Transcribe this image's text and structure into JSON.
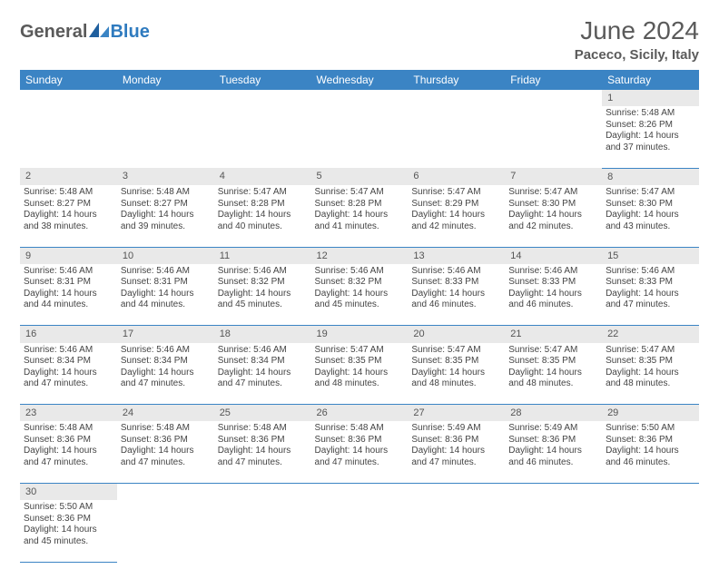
{
  "header": {
    "logo_part1": "General",
    "logo_part2": "Blue",
    "title": "June 2024",
    "subtitle": "Paceco, Sicily, Italy"
  },
  "colors": {
    "header_bg": "#3b84c4",
    "header_text": "#ffffff",
    "daynum_bg": "#e9e9e9",
    "border": "#3b84c4",
    "logo_gray": "#5a5a5a",
    "logo_blue": "#2f7bbf"
  },
  "weekdays": [
    "Sunday",
    "Monday",
    "Tuesday",
    "Wednesday",
    "Thursday",
    "Friday",
    "Saturday"
  ],
  "weeks": [
    [
      null,
      null,
      null,
      null,
      null,
      null,
      {
        "n": "1",
        "sr": "Sunrise: 5:48 AM",
        "ss": "Sunset: 8:26 PM",
        "dl1": "Daylight: 14 hours",
        "dl2": "and 37 minutes."
      }
    ],
    [
      {
        "n": "2",
        "sr": "Sunrise: 5:48 AM",
        "ss": "Sunset: 8:27 PM",
        "dl1": "Daylight: 14 hours",
        "dl2": "and 38 minutes."
      },
      {
        "n": "3",
        "sr": "Sunrise: 5:48 AM",
        "ss": "Sunset: 8:27 PM",
        "dl1": "Daylight: 14 hours",
        "dl2": "and 39 minutes."
      },
      {
        "n": "4",
        "sr": "Sunrise: 5:47 AM",
        "ss": "Sunset: 8:28 PM",
        "dl1": "Daylight: 14 hours",
        "dl2": "and 40 minutes."
      },
      {
        "n": "5",
        "sr": "Sunrise: 5:47 AM",
        "ss": "Sunset: 8:28 PM",
        "dl1": "Daylight: 14 hours",
        "dl2": "and 41 minutes."
      },
      {
        "n": "6",
        "sr": "Sunrise: 5:47 AM",
        "ss": "Sunset: 8:29 PM",
        "dl1": "Daylight: 14 hours",
        "dl2": "and 42 minutes."
      },
      {
        "n": "7",
        "sr": "Sunrise: 5:47 AM",
        "ss": "Sunset: 8:30 PM",
        "dl1": "Daylight: 14 hours",
        "dl2": "and 42 minutes."
      },
      {
        "n": "8",
        "sr": "Sunrise: 5:47 AM",
        "ss": "Sunset: 8:30 PM",
        "dl1": "Daylight: 14 hours",
        "dl2": "and 43 minutes."
      }
    ],
    [
      {
        "n": "9",
        "sr": "Sunrise: 5:46 AM",
        "ss": "Sunset: 8:31 PM",
        "dl1": "Daylight: 14 hours",
        "dl2": "and 44 minutes."
      },
      {
        "n": "10",
        "sr": "Sunrise: 5:46 AM",
        "ss": "Sunset: 8:31 PM",
        "dl1": "Daylight: 14 hours",
        "dl2": "and 44 minutes."
      },
      {
        "n": "11",
        "sr": "Sunrise: 5:46 AM",
        "ss": "Sunset: 8:32 PM",
        "dl1": "Daylight: 14 hours",
        "dl2": "and 45 minutes."
      },
      {
        "n": "12",
        "sr": "Sunrise: 5:46 AM",
        "ss": "Sunset: 8:32 PM",
        "dl1": "Daylight: 14 hours",
        "dl2": "and 45 minutes."
      },
      {
        "n": "13",
        "sr": "Sunrise: 5:46 AM",
        "ss": "Sunset: 8:33 PM",
        "dl1": "Daylight: 14 hours",
        "dl2": "and 46 minutes."
      },
      {
        "n": "14",
        "sr": "Sunrise: 5:46 AM",
        "ss": "Sunset: 8:33 PM",
        "dl1": "Daylight: 14 hours",
        "dl2": "and 46 minutes."
      },
      {
        "n": "15",
        "sr": "Sunrise: 5:46 AM",
        "ss": "Sunset: 8:33 PM",
        "dl1": "Daylight: 14 hours",
        "dl2": "and 47 minutes."
      }
    ],
    [
      {
        "n": "16",
        "sr": "Sunrise: 5:46 AM",
        "ss": "Sunset: 8:34 PM",
        "dl1": "Daylight: 14 hours",
        "dl2": "and 47 minutes."
      },
      {
        "n": "17",
        "sr": "Sunrise: 5:46 AM",
        "ss": "Sunset: 8:34 PM",
        "dl1": "Daylight: 14 hours",
        "dl2": "and 47 minutes."
      },
      {
        "n": "18",
        "sr": "Sunrise: 5:46 AM",
        "ss": "Sunset: 8:34 PM",
        "dl1": "Daylight: 14 hours",
        "dl2": "and 47 minutes."
      },
      {
        "n": "19",
        "sr": "Sunrise: 5:47 AM",
        "ss": "Sunset: 8:35 PM",
        "dl1": "Daylight: 14 hours",
        "dl2": "and 48 minutes."
      },
      {
        "n": "20",
        "sr": "Sunrise: 5:47 AM",
        "ss": "Sunset: 8:35 PM",
        "dl1": "Daylight: 14 hours",
        "dl2": "and 48 minutes."
      },
      {
        "n": "21",
        "sr": "Sunrise: 5:47 AM",
        "ss": "Sunset: 8:35 PM",
        "dl1": "Daylight: 14 hours",
        "dl2": "and 48 minutes."
      },
      {
        "n": "22",
        "sr": "Sunrise: 5:47 AM",
        "ss": "Sunset: 8:35 PM",
        "dl1": "Daylight: 14 hours",
        "dl2": "and 48 minutes."
      }
    ],
    [
      {
        "n": "23",
        "sr": "Sunrise: 5:48 AM",
        "ss": "Sunset: 8:36 PM",
        "dl1": "Daylight: 14 hours",
        "dl2": "and 47 minutes."
      },
      {
        "n": "24",
        "sr": "Sunrise: 5:48 AM",
        "ss": "Sunset: 8:36 PM",
        "dl1": "Daylight: 14 hours",
        "dl2": "and 47 minutes."
      },
      {
        "n": "25",
        "sr": "Sunrise: 5:48 AM",
        "ss": "Sunset: 8:36 PM",
        "dl1": "Daylight: 14 hours",
        "dl2": "and 47 minutes."
      },
      {
        "n": "26",
        "sr": "Sunrise: 5:48 AM",
        "ss": "Sunset: 8:36 PM",
        "dl1": "Daylight: 14 hours",
        "dl2": "and 47 minutes."
      },
      {
        "n": "27",
        "sr": "Sunrise: 5:49 AM",
        "ss": "Sunset: 8:36 PM",
        "dl1": "Daylight: 14 hours",
        "dl2": "and 47 minutes."
      },
      {
        "n": "28",
        "sr": "Sunrise: 5:49 AM",
        "ss": "Sunset: 8:36 PM",
        "dl1": "Daylight: 14 hours",
        "dl2": "and 46 minutes."
      },
      {
        "n": "29",
        "sr": "Sunrise: 5:50 AM",
        "ss": "Sunset: 8:36 PM",
        "dl1": "Daylight: 14 hours",
        "dl2": "and 46 minutes."
      }
    ],
    [
      {
        "n": "30",
        "sr": "Sunrise: 5:50 AM",
        "ss": "Sunset: 8:36 PM",
        "dl1": "Daylight: 14 hours",
        "dl2": "and 45 minutes."
      },
      null,
      null,
      null,
      null,
      null,
      null
    ]
  ]
}
